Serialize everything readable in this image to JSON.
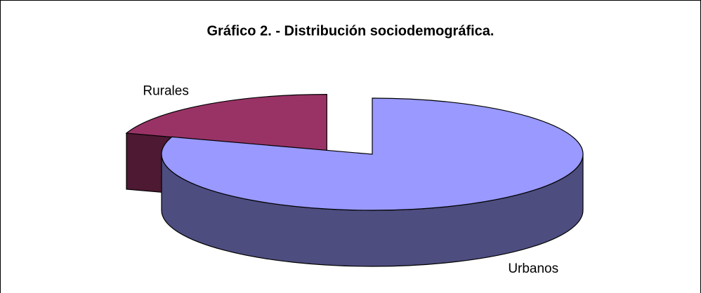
{
  "chart_data": {
    "type": "pie3d",
    "title": "Gráfico 2. - Distribución sociodemográfica.",
    "categories": [
      "Urbanos",
      "Rurales"
    ],
    "values": [
      80,
      20
    ],
    "colors": [
      "#9999ff",
      "#993366"
    ],
    "side_colors": [
      "#4d4d80",
      "#4d1933"
    ]
  }
}
